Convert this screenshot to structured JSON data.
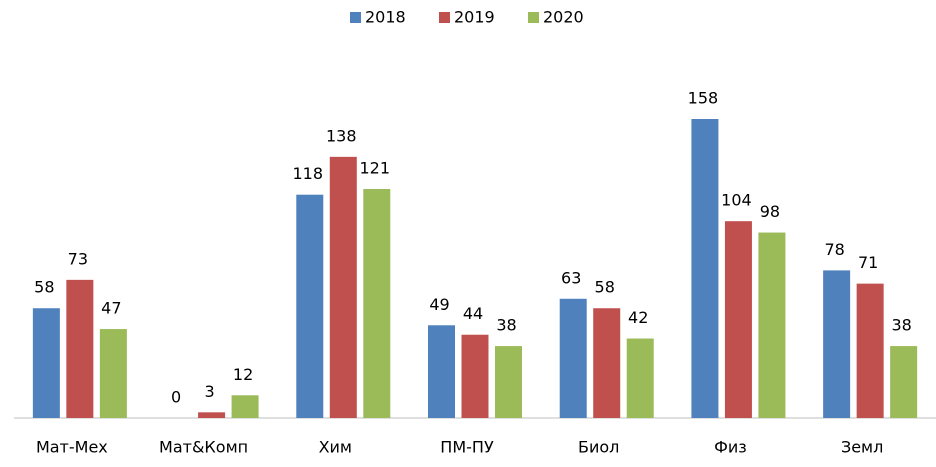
{
  "chart_data": {
    "type": "bar",
    "categories": [
      "Мат-Мех",
      "Мат&Комп",
      "Хим",
      "ПМ-ПУ",
      "Биол",
      "Физ",
      "Земл"
    ],
    "series": [
      {
        "name": "2018",
        "color": "#4f81bd",
        "values": [
          58,
          0,
          118,
          49,
          63,
          158,
          78
        ]
      },
      {
        "name": "2019",
        "color": "#c0504d",
        "values": [
          73,
          3,
          138,
          44,
          58,
          104,
          71
        ]
      },
      {
        "name": "2020",
        "color": "#9bbb59",
        "values": [
          47,
          12,
          121,
          38,
          42,
          98,
          38
        ]
      }
    ],
    "legend": "top"
  }
}
